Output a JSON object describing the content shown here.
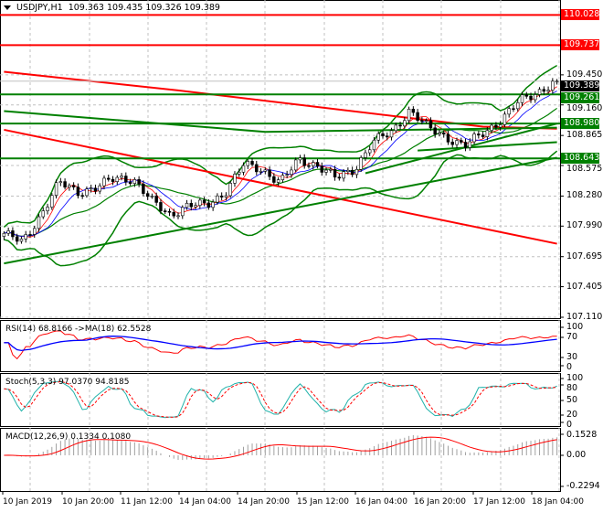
{
  "header": {
    "symbol": "USDJPY,H1",
    "open": "109.363",
    "high": "109.435",
    "low": "109.326",
    "close": "109.389",
    "menu_icon": "triangle-down-icon"
  },
  "colors": {
    "support": "#008000",
    "resistance": "#ff0000",
    "current": "#000000",
    "rsi": "#ff0000",
    "rsi_ma": "#0000ff",
    "stoch_main": "#20b2aa",
    "stoch_signal": "#ff0000",
    "macd_hist": "#a0a0a0",
    "macd_signal": "#ff0000",
    "bollinger": "#008000"
  },
  "chart_data": [
    {
      "type": "candlestick",
      "title": "USDJPY,H1",
      "ylim": [
        107.11,
        110.028
      ],
      "yticks": [
        "109.450",
        "109.160",
        "108.865",
        "108.575",
        "108.280",
        "107.990",
        "107.695",
        "107.405",
        "107.110"
      ],
      "xticks": [
        "10 Jan 2019",
        "10 Jan 20:00",
        "11 Jan 12:00",
        "14 Jan 04:00",
        "14 Jan 20:00",
        "15 Jan 12:00",
        "16 Jan 04:00",
        "16 Jan 20:00",
        "17 Jan 12:00",
        "18 Jan 04:00"
      ],
      "close_path": [
        107.92,
        107.83,
        108.1,
        108.41,
        108.32,
        108.36,
        108.45,
        108.45,
        108.23,
        108.1,
        108.19,
        108.19,
        108.32,
        108.58,
        108.54,
        108.41,
        108.63,
        108.58,
        108.45,
        108.54,
        108.8,
        108.89,
        109.11,
        108.94,
        108.85,
        108.76,
        108.89,
        109.02,
        109.2,
        109.29,
        109.389
      ],
      "levels": [
        {
          "price": 110.028,
          "label": "110.028",
          "kind": "resistance"
        },
        {
          "price": 109.737,
          "label": "109.737",
          "kind": "resistance"
        },
        {
          "price": 109.389,
          "label": "109.389",
          "kind": "current"
        },
        {
          "price": 109.261,
          "label": "109.261",
          "kind": "support"
        },
        {
          "price": 108.98,
          "label": "108.980",
          "kind": "support"
        },
        {
          "price": 108.643,
          "label": "108.643",
          "kind": "support"
        }
      ],
      "trendlines": [
        {
          "color": "red",
          "points": [
            [
              0,
              108.92
            ],
            [
              127,
              107.82
            ]
          ]
        },
        {
          "color": "red",
          "points": [
            [
              0,
              109.48
            ],
            [
              40,
              109.3
            ],
            [
              90,
              109.05
            ],
            [
              110,
              108.95
            ],
            [
              127,
              108.93
            ]
          ]
        },
        {
          "color": "green",
          "points": [
            [
              0,
              107.63
            ],
            [
              127,
              108.65
            ]
          ]
        },
        {
          "color": "green",
          "points": [
            [
              0,
              109.1
            ],
            [
              60,
              108.9
            ],
            [
              127,
              108.94
            ]
          ]
        },
        {
          "color": "green",
          "points": [
            [
              83,
              108.5
            ],
            [
              127,
              108.98
            ]
          ]
        },
        {
          "color": "green",
          "points": [
            [
              95,
              108.72
            ],
            [
              127,
              108.8
            ]
          ]
        }
      ]
    },
    {
      "type": "line",
      "title": "RSI(14) 68.8166  ->MA(18) 62.5528",
      "ylim": [
        0,
        100
      ],
      "yticks": [
        "100",
        "70",
        "30",
        "0"
      ],
      "series": [
        {
          "name": "RSI(14)",
          "last": 68.8166
        },
        {
          "name": "MA(18)",
          "last": 62.5528
        }
      ]
    },
    {
      "type": "line",
      "title": "Stoch(5,3,3) 97.0370 94.8185",
      "ylim": [
        0,
        100
      ],
      "yticks": [
        "100",
        "80",
        "50",
        "20",
        "0"
      ],
      "series": [
        {
          "name": "main",
          "last": 97.037
        },
        {
          "name": "signal",
          "last": 94.8185
        }
      ]
    },
    {
      "type": "bar",
      "title": "MACD(12,26,9) 0.1334 0.1080",
      "ylim": [
        -0.2294,
        0.1528
      ],
      "yticks": [
        "0.1528",
        "0.00",
        "-0.2294"
      ],
      "series": [
        {
          "name": "MACD",
          "last": 0.1334
        },
        {
          "name": "signal",
          "last": 0.108
        }
      ]
    }
  ]
}
